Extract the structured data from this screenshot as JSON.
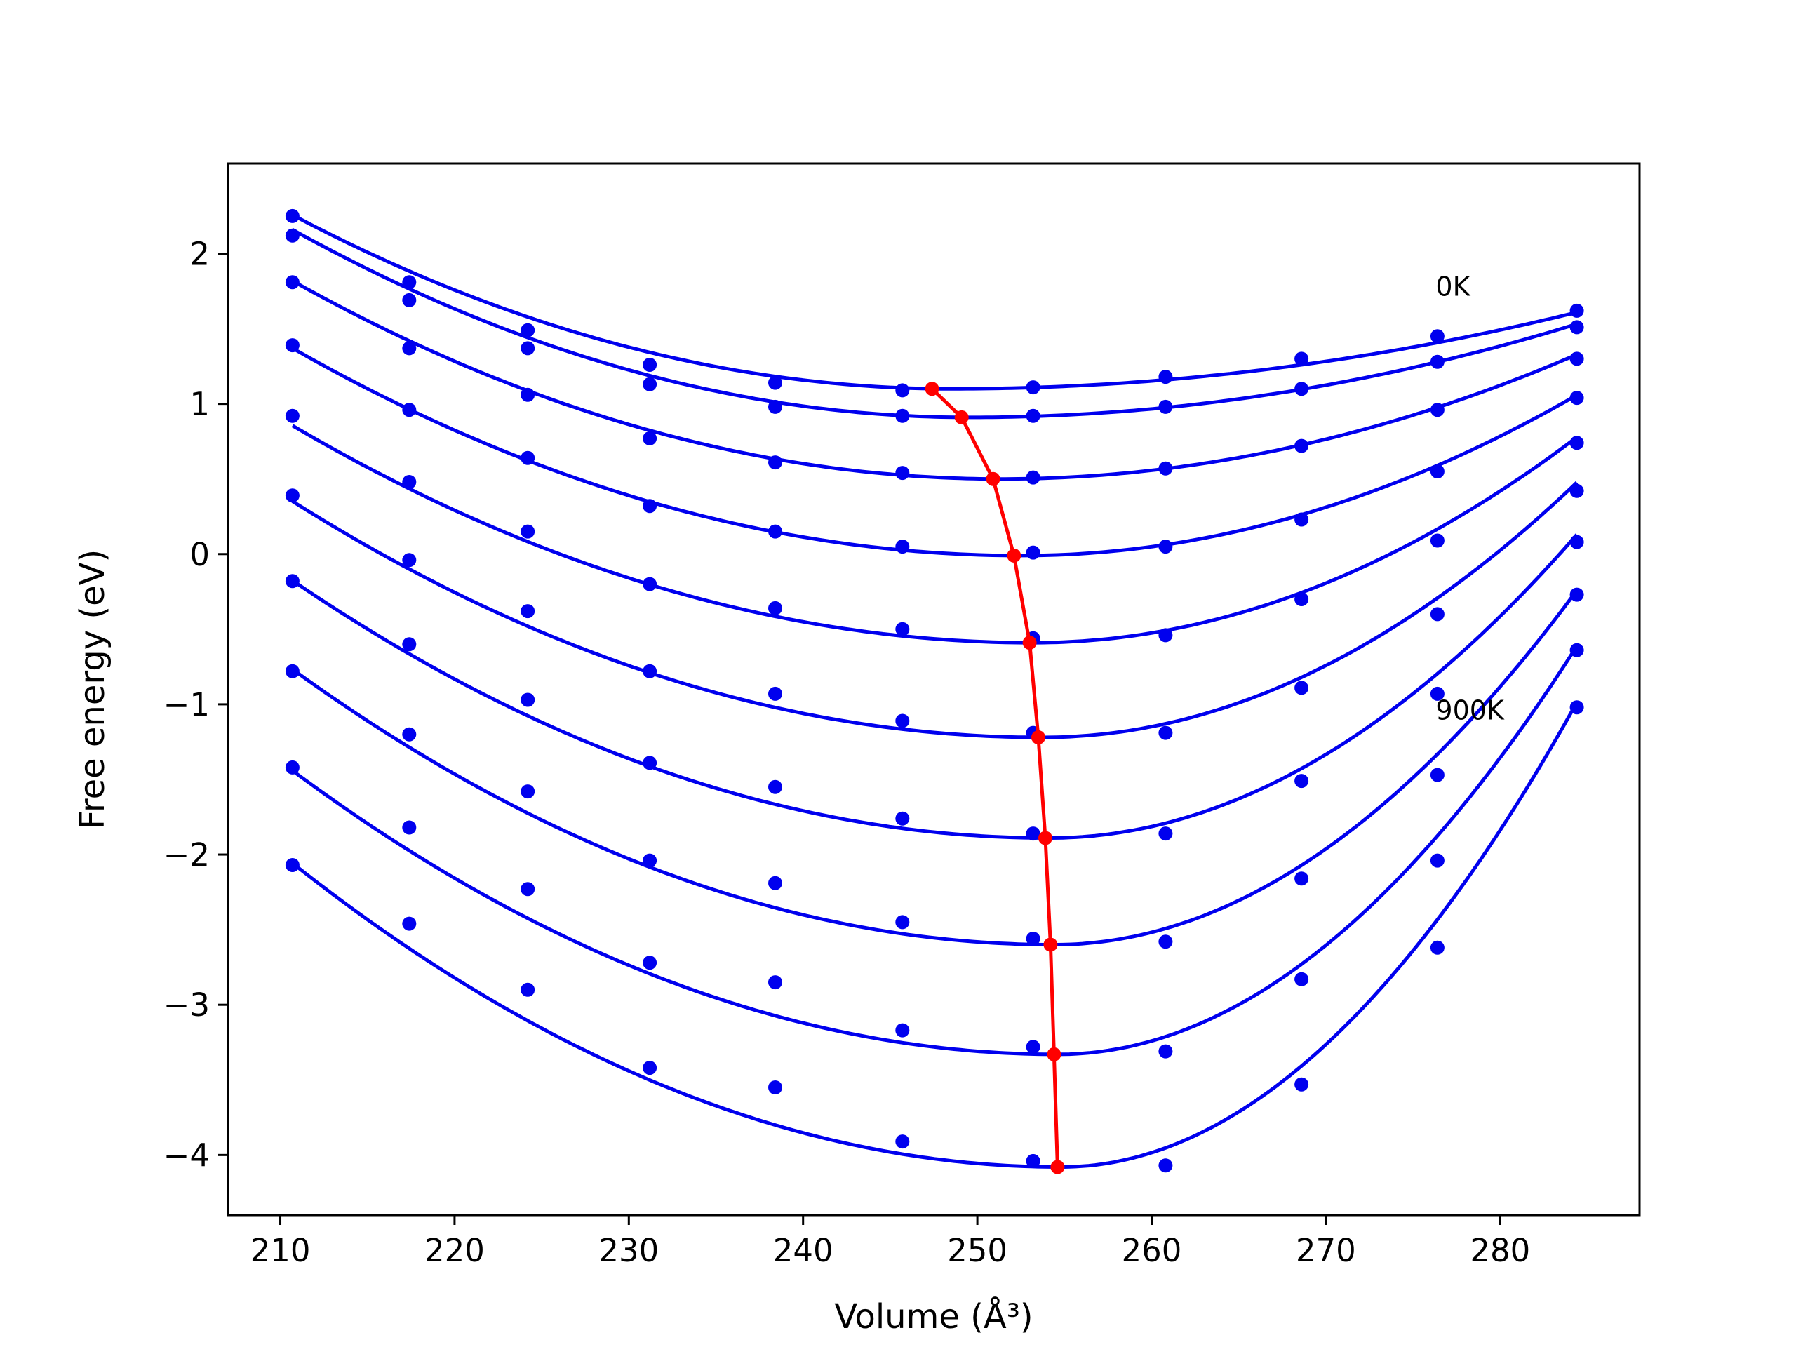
{
  "chart_data": {
    "type": "line",
    "title": "",
    "xlabel": "Volume (Å³)",
    "ylabel": "Free energy (eV)",
    "xlim": [
      207,
      288
    ],
    "ylim": [
      -4.4,
      2.6
    ],
    "xticks": [
      210,
      220,
      230,
      240,
      250,
      260,
      270,
      280
    ],
    "yticks": [
      -4,
      -3,
      -2,
      -1,
      0,
      1,
      2
    ],
    "ytick_labels": [
      "−4",
      "−3",
      "−2",
      "−1",
      "0",
      "1",
      "2"
    ],
    "grid": false,
    "legend": "none",
    "annotations": [
      {
        "text": "0K",
        "x": 276.3,
        "y": 1.72
      },
      {
        "text": "900K",
        "x": 276.3,
        "y": -1.1
      }
    ],
    "volumes": [
      210.7,
      217.4,
      224.2,
      231.2,
      238.4,
      245.7,
      253.2,
      260.8,
      268.6,
      276.4,
      284.4
    ],
    "fit_x_min": 210.7,
    "fit_x_max": 284.4,
    "series": [
      {
        "data_points": [
          2.25,
          1.81,
          1.49,
          1.26,
          1.14,
          1.09,
          1.11,
          1.18,
          1.3,
          1.45,
          1.62
        ],
        "fit": {
          "vertex_x": 248.5,
          "vertex_y": 1.1,
          "left": 0.00081,
          "right": 0.000395
        }
      },
      {
        "data_points": [
          2.12,
          1.69,
          1.37,
          1.13,
          0.98,
          0.92,
          0.92,
          0.98,
          1.1,
          1.28,
          1.51
        ],
        "fit": {
          "vertex_x": 249.5,
          "vertex_y": 0.91,
          "left": 0.00083,
          "right": 0.00051
        }
      },
      {
        "data_points": [
          1.81,
          1.37,
          1.06,
          0.77,
          0.61,
          0.54,
          0.51,
          0.57,
          0.72,
          0.96,
          1.3
        ],
        "fit": {
          "vertex_x": 251.3,
          "vertex_y": 0.5,
          "left": 0.0008,
          "right": 0.000756
        }
      },
      {
        "data_points": [
          1.39,
          0.96,
          0.64,
          0.32,
          0.15,
          0.05,
          0.01,
          0.05,
          0.23,
          0.55,
          1.04
        ],
        "fit": {
          "vertex_x": 252.5,
          "vertex_y": -0.01,
          "left": 0.00079,
          "right": 0.00105
        }
      },
      {
        "data_points": [
          0.92,
          0.48,
          0.15,
          -0.2,
          -0.36,
          -0.5,
          -0.56,
          -0.54,
          -0.3,
          0.09,
          0.74
        ],
        "fit": {
          "vertex_x": 253.2,
          "vertex_y": -0.59,
          "left": 0.0008,
          "right": 0.001405
        }
      },
      {
        "data_points": [
          0.39,
          -0.04,
          -0.38,
          -0.78,
          -0.93,
          -1.11,
          -1.19,
          -1.19,
          -0.89,
          -0.4,
          0.42
        ],
        "fit": {
          "vertex_x": 253.7,
          "vertex_y": -1.22,
          "left": 0.00085,
          "right": 0.0018
        }
      },
      {
        "data_points": [
          -0.18,
          -0.6,
          -0.97,
          -1.39,
          -1.55,
          -1.76,
          -1.86,
          -1.86,
          -1.51,
          -0.93,
          0.08
        ],
        "fit": {
          "vertex_x": 254.1,
          "vertex_y": -1.89,
          "left": 0.00091,
          "right": 0.0022
        }
      },
      {
        "data_points": [
          -0.78,
          -1.2,
          -1.58,
          -2.04,
          -2.19,
          -2.45,
          -2.56,
          -2.58,
          -2.16,
          -1.47,
          -0.27
        ],
        "fit": {
          "vertex_x": 254.4,
          "vertex_y": -2.6,
          "left": 0.00096,
          "right": 0.00262
        }
      },
      {
        "data_points": [
          -1.42,
          -1.82,
          -2.23,
          -2.72,
          -2.85,
          -3.17,
          -3.28,
          -3.31,
          -2.83,
          -2.04,
          -0.64
        ],
        "fit": {
          "vertex_x": 254.6,
          "vertex_y": -3.33,
          "left": 0.00098,
          "right": 0.00306
        }
      },
      {
        "data_points": [
          -2.07,
          -2.46,
          -2.9,
          -3.42,
          -3.55,
          -3.91,
          -4.04,
          -4.07,
          -3.53,
          -2.62,
          -1.02
        ],
        "fit": {
          "vertex_x": 254.8,
          "vertex_y": -4.08,
          "left": 0.00104,
          "right": 0.00353
        }
      }
    ],
    "equilibrium_line": {
      "x": [
        247.4,
        249.1,
        250.9,
        252.1,
        253.0,
        253.5,
        253.9,
        254.2,
        254.4,
        254.6
      ],
      "y": [
        1.1,
        0.91,
        0.5,
        -0.01,
        -0.59,
        -1.22,
        -1.89,
        -2.6,
        -3.33,
        -4.08
      ]
    },
    "colors": {
      "curves": "#0000ee",
      "equilibrium": "#ff0000",
      "axes": "#000000"
    }
  }
}
